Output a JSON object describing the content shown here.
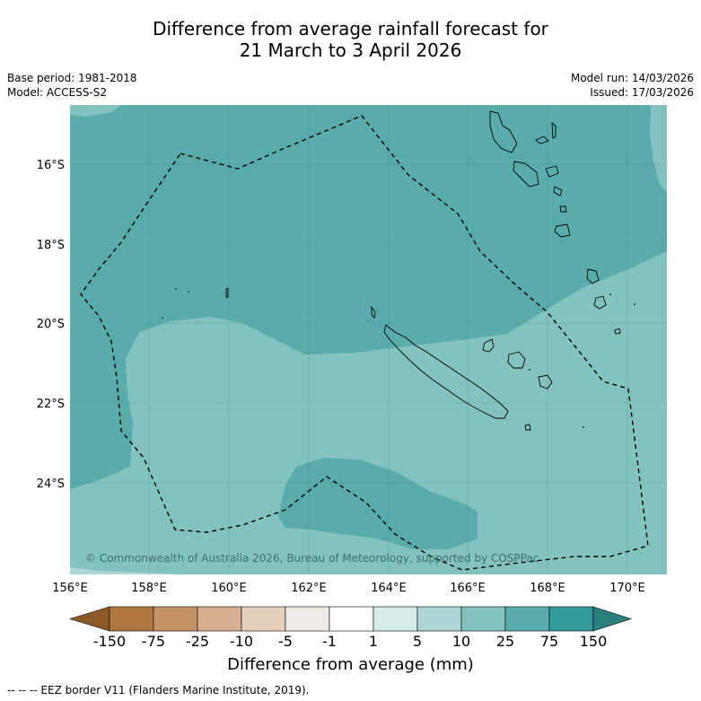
{
  "title_line1": "Difference from average rainfall forecast for",
  "title_line2": "21 March to 3 April 2026",
  "base_period": "Base period: 1981-2018",
  "model": "Model: ACCESS-S2",
  "model_run": "Model run: 14/03/2026",
  "issued": "Issued: 17/03/2026",
  "lat_labels": [
    "16°S",
    "18°S",
    "20°S",
    "22°S",
    "24°S"
  ],
  "lon_labels": [
    "156°E",
    "158°E",
    "160°E",
    "162°E",
    "164°E",
    "166°E",
    "168°E",
    "170°E"
  ],
  "copyright": "© Commonwealth of Australia 2026, Bureau of Meteorology, supported by COSPPac",
  "colorbar": {
    "labels": [
      "-150",
      "-75",
      "-25",
      "-10",
      "-5",
      "-1",
      "1",
      "5",
      "10",
      "25",
      "75",
      "150"
    ],
    "title": "Difference from average (mm)",
    "colors": [
      "#8b5a2b",
      "#b07840",
      "#c49468",
      "#d6b090",
      "#e6d0bc",
      "#efece8",
      "#ffffff",
      "#d6ebe8",
      "#aed6d4",
      "#84c2c0",
      "#5aacac",
      "#339a98",
      "#2a7e7c"
    ]
  },
  "legend_footnote": "--  --  -- EEZ border V11 (Flanders Marine Institute, 2019).",
  "map_colors": {
    "category_10_25": "#84c2c0",
    "category_25_75": "#5aacac"
  }
}
